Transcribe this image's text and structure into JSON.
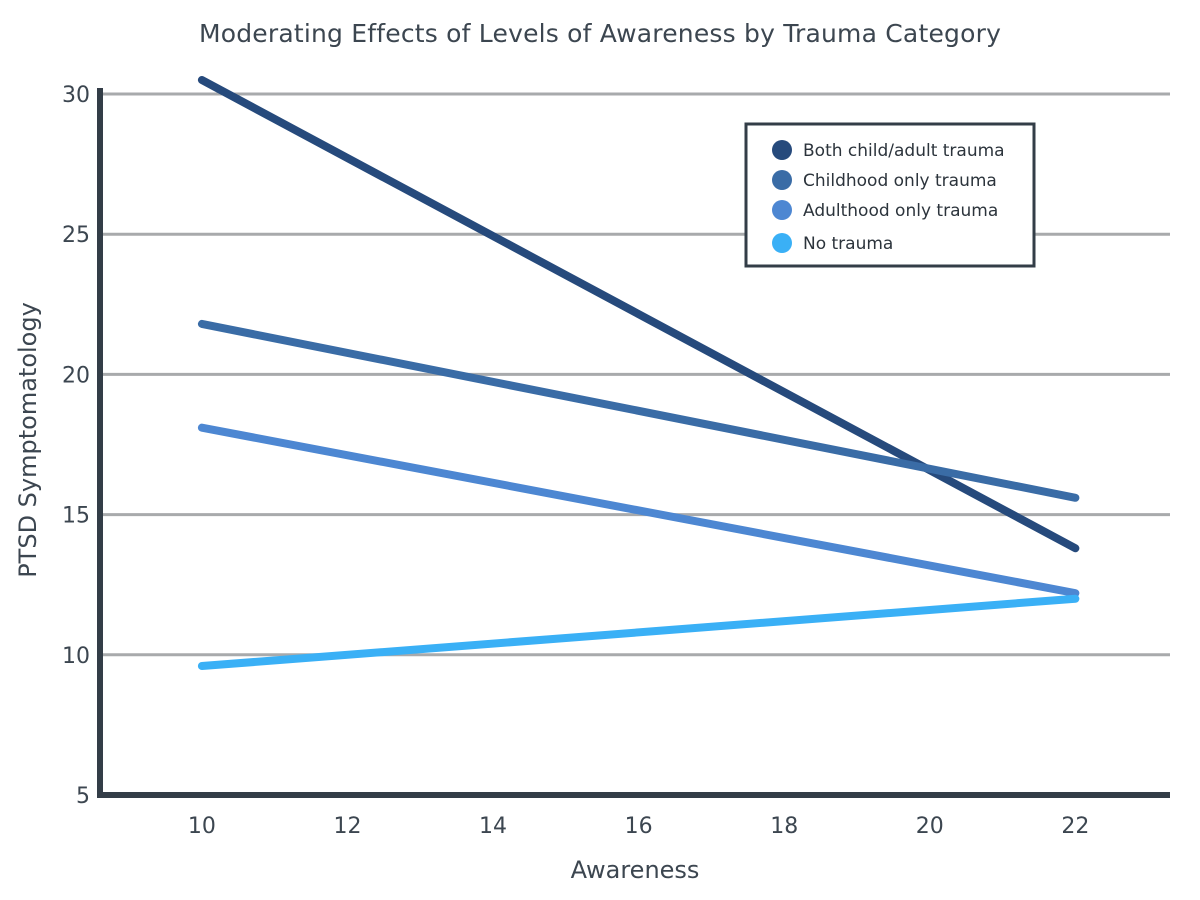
{
  "chart_data": {
    "type": "line",
    "title": "Moderating Effects of Levels of Awareness by Trauma Category",
    "xlabel": "Awareness",
    "ylabel": "PTSD Symptomatology",
    "x_ticks": [
      "10",
      "12",
      "14",
      "16",
      "18",
      "20",
      "22"
    ],
    "y_ticks": [
      "5",
      "10",
      "15",
      "20",
      "25",
      "30"
    ],
    "xlim": [
      8.6,
      23.3
    ],
    "ylim": [
      5,
      30.5
    ],
    "grid": true,
    "legend_position": "top-right",
    "x": [
      10,
      22
    ],
    "series": [
      {
        "name": "Both child/adult trauma",
        "values": [
          30.5,
          13.8
        ],
        "color": "#264a7c"
      },
      {
        "name": "Childhood only trauma",
        "values": [
          21.8,
          15.6
        ],
        "color": "#3a6ca6"
      },
      {
        "name": "Adulthood only trauma",
        "values": [
          18.1,
          12.2
        ],
        "color": "#4d87d2"
      },
      {
        "name": "No trauma",
        "values": [
          9.6,
          12.0
        ],
        "color": "#3ab0f6"
      }
    ],
    "colors": {
      "axis": "#333d47",
      "grid": "#a8aaac",
      "text": "#3c4650"
    }
  }
}
